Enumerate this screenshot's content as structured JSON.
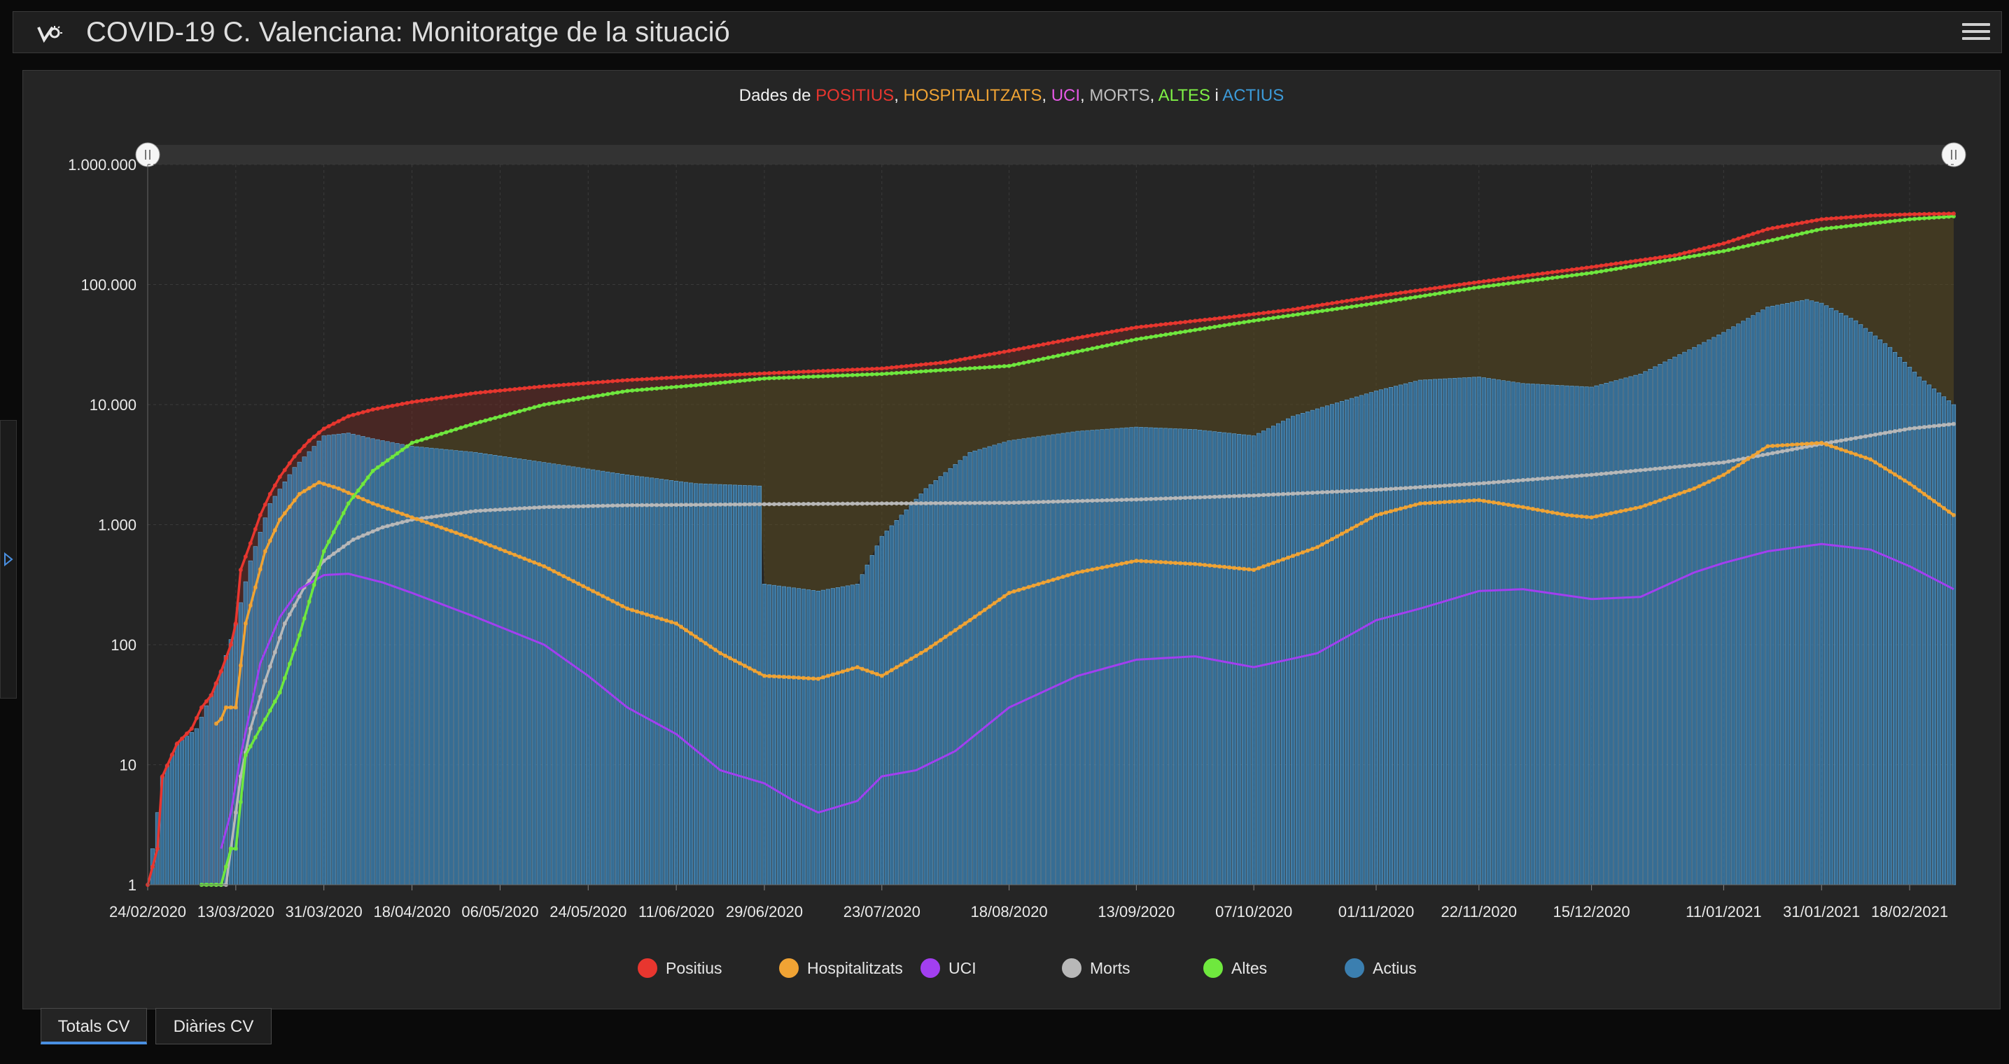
{
  "header": {
    "title": "COVID-19 C. Valenciana: Monitoratge de la situació",
    "logo_icon": "virus-monitor-icon",
    "menu_icon": "hamburger-menu-icon"
  },
  "chart_title": {
    "prefix": "Dades de ",
    "parts": [
      {
        "text": "POSITIUS",
        "color": "#e8362f",
        "sep": ", "
      },
      {
        "text": "HOSPITALITZATS",
        "color": "#f0a334",
        "sep": ", "
      },
      {
        "text": "UCI",
        "color": "#e659e6",
        "sep": ", "
      },
      {
        "text": "MORTS",
        "color": "#bfbfbf",
        "sep": ", "
      },
      {
        "text": "ALTES",
        "color": "#7ef045",
        "sep": " i "
      },
      {
        "text": "ACTIUS",
        "color": "#3c9ad8",
        "sep": ""
      }
    ]
  },
  "legend": [
    {
      "name": "Positius",
      "color": "#e8362f"
    },
    {
      "name": "Hospitalitzats",
      "color": "#f0a334"
    },
    {
      "name": "UCI",
      "color": "#a23ff0"
    },
    {
      "name": "Morts",
      "color": "#b8b8b8"
    },
    {
      "name": "Altes",
      "color": "#6fe83e"
    },
    {
      "name": "Actius",
      "color": "#3b7fb0"
    }
  ],
  "tabs": [
    {
      "label": "Totals CV",
      "active": true
    },
    {
      "label": "Diàries CV",
      "active": false
    }
  ],
  "chart_data": {
    "type": "line",
    "y_scale": "log",
    "ylim": [
      1,
      1000000
    ],
    "y_ticks": [
      {
        "value": 1,
        "label": "1"
      },
      {
        "value": 10,
        "label": "10"
      },
      {
        "value": 100,
        "label": "100"
      },
      {
        "value": 1000,
        "label": "1.000"
      },
      {
        "value": 10000,
        "label": "10.000"
      },
      {
        "value": 100000,
        "label": "100.000"
      },
      {
        "value": 1000000,
        "label": "1.000.000"
      }
    ],
    "x_range": [
      "2020-02-24",
      "2021-02-27"
    ],
    "x_ticks": [
      {
        "date": "2020-02-24",
        "label": "24/02/2020"
      },
      {
        "date": "2020-03-13",
        "label": "13/03/2020"
      },
      {
        "date": "2020-03-31",
        "label": "31/03/2020"
      },
      {
        "date": "2020-04-18",
        "label": "18/04/2020"
      },
      {
        "date": "2020-05-06",
        "label": "06/05/2020"
      },
      {
        "date": "2020-05-24",
        "label": "24/05/2020"
      },
      {
        "date": "2020-06-11",
        "label": "11/06/2020"
      },
      {
        "date": "2020-06-29",
        "label": "29/06/2020"
      },
      {
        "date": "2020-07-23",
        "label": "23/07/2020"
      },
      {
        "date": "2020-08-18",
        "label": "18/08/2020"
      },
      {
        "date": "2020-09-13",
        "label": "13/09/2020"
      },
      {
        "date": "2020-10-07",
        "label": "07/10/2020"
      },
      {
        "date": "2020-11-01",
        "label": "01/11/2020"
      },
      {
        "date": "2020-11-22",
        "label": "22/11/2020"
      },
      {
        "date": "2020-12-15",
        "label": "15/12/2020"
      },
      {
        "date": "2021-01-11",
        "label": "11/01/2021"
      },
      {
        "date": "2021-01-31",
        "label": "31/01/2021"
      },
      {
        "date": "2021-02-18",
        "label": "18/02/2021"
      }
    ],
    "grid": true,
    "legend_position": "bottom",
    "series": [
      {
        "name": "Positius",
        "color": "#e8362f",
        "points": [
          [
            "2020-02-24",
            1
          ],
          [
            "2020-02-26",
            2
          ],
          [
            "2020-02-27",
            8
          ],
          [
            "2020-03-01",
            15
          ],
          [
            "2020-03-04",
            20
          ],
          [
            "2020-03-06",
            30
          ],
          [
            "2020-03-08",
            38
          ],
          [
            "2020-03-10",
            60
          ],
          [
            "2020-03-12",
            100
          ],
          [
            "2020-03-13",
            150
          ],
          [
            "2020-03-14",
            420
          ],
          [
            "2020-03-16",
            700
          ],
          [
            "2020-03-18",
            1200
          ],
          [
            "2020-03-20",
            1800
          ],
          [
            "2020-03-22",
            2500
          ],
          [
            "2020-03-25",
            3700
          ],
          [
            "2020-03-28",
            5000
          ],
          [
            "2020-03-31",
            6300
          ],
          [
            "2020-04-05",
            8000
          ],
          [
            "2020-04-10",
            9100
          ],
          [
            "2020-04-18",
            10500
          ],
          [
            "2020-05-01",
            12500
          ],
          [
            "2020-05-15",
            14200
          ],
          [
            "2020-06-01",
            16000
          ],
          [
            "2020-06-15",
            17200
          ],
          [
            "2020-06-29",
            18200
          ],
          [
            "2020-07-23",
            20000
          ],
          [
            "2020-08-05",
            22500
          ],
          [
            "2020-08-18",
            28000
          ],
          [
            "2020-09-01",
            36000
          ],
          [
            "2020-09-13",
            44000
          ],
          [
            "2020-10-01",
            53000
          ],
          [
            "2020-10-15",
            62000
          ],
          [
            "2020-11-01",
            80000
          ],
          [
            "2020-11-22",
            105000
          ],
          [
            "2020-12-15",
            140000
          ],
          [
            "2021-01-01",
            175000
          ],
          [
            "2021-01-11",
            220000
          ],
          [
            "2021-01-20",
            290000
          ],
          [
            "2021-01-31",
            350000
          ],
          [
            "2021-02-10",
            375000
          ],
          [
            "2021-02-18",
            385000
          ],
          [
            "2021-02-27",
            390000
          ]
        ]
      },
      {
        "name": "Hospitalitzats",
        "color": "#f0a334",
        "points": [
          [
            "2020-03-09",
            22
          ],
          [
            "2020-03-10",
            24
          ],
          [
            "2020-03-11",
            30
          ],
          [
            "2020-03-13",
            30
          ],
          [
            "2020-03-15",
            150
          ],
          [
            "2020-03-17",
            300
          ],
          [
            "2020-03-19",
            600
          ],
          [
            "2020-03-22",
            1100
          ],
          [
            "2020-03-26",
            1800
          ],
          [
            "2020-03-30",
            2250
          ],
          [
            "2020-04-03",
            2000
          ],
          [
            "2020-04-10",
            1500
          ],
          [
            "2020-04-18",
            1150
          ],
          [
            "2020-05-01",
            750
          ],
          [
            "2020-05-15",
            450
          ],
          [
            "2020-06-01",
            200
          ],
          [
            "2020-06-11",
            150
          ],
          [
            "2020-06-20",
            85
          ],
          [
            "2020-06-29",
            55
          ],
          [
            "2020-07-10",
            52
          ],
          [
            "2020-07-18",
            65
          ],
          [
            "2020-07-23",
            55
          ],
          [
            "2020-08-01",
            90
          ],
          [
            "2020-08-10",
            160
          ],
          [
            "2020-08-18",
            270
          ],
          [
            "2020-09-01",
            400
          ],
          [
            "2020-09-13",
            500
          ],
          [
            "2020-09-25",
            470
          ],
          [
            "2020-10-07",
            420
          ],
          [
            "2020-10-20",
            650
          ],
          [
            "2020-11-01",
            1200
          ],
          [
            "2020-11-10",
            1500
          ],
          [
            "2020-11-22",
            1600
          ],
          [
            "2020-12-01",
            1400
          ],
          [
            "2020-12-10",
            1200
          ],
          [
            "2020-12-15",
            1150
          ],
          [
            "2020-12-25",
            1400
          ],
          [
            "2021-01-05",
            2000
          ],
          [
            "2021-01-11",
            2600
          ],
          [
            "2021-01-20",
            4500
          ],
          [
            "2021-01-31",
            4800
          ],
          [
            "2021-02-10",
            3500
          ],
          [
            "2021-02-18",
            2200
          ],
          [
            "2021-02-27",
            1200
          ]
        ]
      },
      {
        "name": "UCI",
        "color": "#a23ff0",
        "points": [
          [
            "2020-03-10",
            2
          ],
          [
            "2020-03-12",
            4
          ],
          [
            "2020-03-14",
            12
          ],
          [
            "2020-03-18",
            70
          ],
          [
            "2020-03-22",
            170
          ],
          [
            "2020-03-26",
            290
          ],
          [
            "2020-03-31",
            380
          ],
          [
            "2020-04-05",
            390
          ],
          [
            "2020-04-12",
            330
          ],
          [
            "2020-04-18",
            270
          ],
          [
            "2020-05-01",
            170
          ],
          [
            "2020-05-15",
            100
          ],
          [
            "2020-05-24",
            55
          ],
          [
            "2020-06-01",
            30
          ],
          [
            "2020-06-11",
            18
          ],
          [
            "2020-06-20",
            9
          ],
          [
            "2020-06-29",
            7
          ],
          [
            "2020-07-05",
            5
          ],
          [
            "2020-07-10",
            4
          ],
          [
            "2020-07-18",
            5
          ],
          [
            "2020-07-23",
            8
          ],
          [
            "2020-07-30",
            9
          ],
          [
            "2020-08-07",
            13
          ],
          [
            "2020-08-18",
            30
          ],
          [
            "2020-09-01",
            55
          ],
          [
            "2020-09-13",
            75
          ],
          [
            "2020-09-25",
            80
          ],
          [
            "2020-10-07",
            65
          ],
          [
            "2020-10-20",
            85
          ],
          [
            "2020-11-01",
            160
          ],
          [
            "2020-11-10",
            200
          ],
          [
            "2020-11-22",
            280
          ],
          [
            "2020-12-01",
            290
          ],
          [
            "2020-12-15",
            240
          ],
          [
            "2020-12-25",
            250
          ],
          [
            "2021-01-05",
            400
          ],
          [
            "2021-01-11",
            480
          ],
          [
            "2021-01-20",
            600
          ],
          [
            "2021-01-31",
            690
          ],
          [
            "2021-02-10",
            620
          ],
          [
            "2021-02-18",
            450
          ],
          [
            "2021-02-27",
            290
          ]
        ]
      },
      {
        "name": "Morts",
        "color": "#b8b8b8",
        "points": [
          [
            "2020-03-09",
            1
          ],
          [
            "2020-03-11",
            1
          ],
          [
            "2020-03-12",
            2
          ],
          [
            "2020-03-13",
            4
          ],
          [
            "2020-03-14",
            8
          ],
          [
            "2020-03-16",
            20
          ],
          [
            "2020-03-19",
            50
          ],
          [
            "2020-03-23",
            150
          ],
          [
            "2020-03-27",
            300
          ],
          [
            "2020-03-31",
            500
          ],
          [
            "2020-04-06",
            750
          ],
          [
            "2020-04-12",
            950
          ],
          [
            "2020-04-18",
            1100
          ],
          [
            "2020-05-01",
            1300
          ],
          [
            "2020-05-15",
            1400
          ],
          [
            "2020-06-01",
            1450
          ],
          [
            "2020-06-29",
            1480
          ],
          [
            "2020-07-23",
            1500
          ],
          [
            "2020-08-18",
            1520
          ],
          [
            "2020-09-13",
            1620
          ],
          [
            "2020-10-07",
            1750
          ],
          [
            "2020-11-01",
            1950
          ],
          [
            "2020-11-22",
            2200
          ],
          [
            "2020-12-15",
            2600
          ],
          [
            "2021-01-11",
            3300
          ],
          [
            "2021-01-31",
            4700
          ],
          [
            "2021-02-18",
            6300
          ],
          [
            "2021-02-27",
            6900
          ]
        ]
      },
      {
        "name": "Altes",
        "color": "#6fe83e",
        "points": [
          [
            "2020-03-06",
            1
          ],
          [
            "2020-03-10",
            1
          ],
          [
            "2020-03-12",
            2
          ],
          [
            "2020-03-13",
            2
          ],
          [
            "2020-03-15",
            12
          ],
          [
            "2020-03-18",
            20
          ],
          [
            "2020-03-22",
            40
          ],
          [
            "2020-03-26",
            120
          ],
          [
            "2020-03-31",
            600
          ],
          [
            "2020-04-05",
            1500
          ],
          [
            "2020-04-10",
            2800
          ],
          [
            "2020-04-18",
            4800
          ],
          [
            "2020-05-01",
            7000
          ],
          [
            "2020-05-15",
            10000
          ],
          [
            "2020-06-01",
            13000
          ],
          [
            "2020-06-15",
            14500
          ],
          [
            "2020-06-29",
            16500
          ],
          [
            "2020-07-23",
            18000
          ],
          [
            "2020-08-18",
            21000
          ],
          [
            "2020-09-13",
            35000
          ],
          [
            "2020-10-07",
            50000
          ],
          [
            "2020-11-01",
            70000
          ],
          [
            "2020-11-22",
            95000
          ],
          [
            "2020-12-15",
            125000
          ],
          [
            "2021-01-11",
            190000
          ],
          [
            "2021-01-31",
            290000
          ],
          [
            "2021-02-18",
            350000
          ],
          [
            "2021-02-27",
            370000
          ]
        ]
      },
      {
        "name": "Actius",
        "color": "#3b7fb0",
        "points": [
          [
            "2020-02-24",
            1
          ],
          [
            "2020-02-27",
            8
          ],
          [
            "2020-03-01",
            15
          ],
          [
            "2020-03-05",
            20
          ],
          [
            "2020-03-10",
            60
          ],
          [
            "2020-03-13",
            150
          ],
          [
            "2020-03-16",
            500
          ],
          [
            "2020-03-20",
            1500
          ],
          [
            "2020-03-25",
            3000
          ],
          [
            "2020-03-31",
            5500
          ],
          [
            "2020-04-05",
            5800
          ],
          [
            "2020-04-10",
            5200
          ],
          [
            "2020-04-18",
            4500
          ],
          [
            "2020-05-01",
            4000
          ],
          [
            "2020-05-15",
            3300
          ],
          [
            "2020-06-01",
            2600
          ],
          [
            "2020-06-15",
            2200
          ],
          [
            "2020-06-28",
            2100
          ],
          [
            "2020-06-29",
            320
          ],
          [
            "2020-07-10",
            280
          ],
          [
            "2020-07-18",
            320
          ],
          [
            "2020-07-23",
            800
          ],
          [
            "2020-08-01",
            2000
          ],
          [
            "2020-08-10",
            4000
          ],
          [
            "2020-08-18",
            5000
          ],
          [
            "2020-09-01",
            6000
          ],
          [
            "2020-09-13",
            6500
          ],
          [
            "2020-09-25",
            6200
          ],
          [
            "2020-10-07",
            5500
          ],
          [
            "2020-10-15",
            8000
          ],
          [
            "2020-11-01",
            13000
          ],
          [
            "2020-11-10",
            16000
          ],
          [
            "2020-11-22",
            17000
          ],
          [
            "2020-12-01",
            15000
          ],
          [
            "2020-12-15",
            14000
          ],
          [
            "2020-12-25",
            18000
          ],
          [
            "2021-01-05",
            30000
          ],
          [
            "2021-01-11",
            40000
          ],
          [
            "2021-01-20",
            65000
          ],
          [
            "2021-01-28",
            75000
          ],
          [
            "2021-01-31",
            70000
          ],
          [
            "2021-02-07",
            50000
          ],
          [
            "2021-02-14",
            30000
          ],
          [
            "2021-02-20",
            17000
          ],
          [
            "2021-02-27",
            10000
          ]
        ]
      }
    ]
  }
}
